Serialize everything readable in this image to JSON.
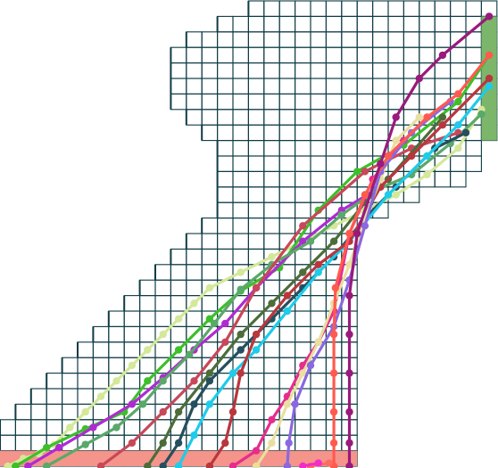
{
  "game": {
    "grid_color": "#0d3b44",
    "start_zone_color": "#f4948a",
    "goal_zone_color": "#7cb66b",
    "background": "#ffffff"
  },
  "paths": [
    {
      "color": "#d4e89a",
      "points": [
        [
          0.5,
          30
        ],
        [
          1.5,
          29.5
        ],
        [
          2.5,
          29.2
        ],
        [
          3.5,
          28.6
        ],
        [
          4.5,
          27.5
        ],
        [
          5.5,
          26.5
        ],
        [
          6.5,
          25.5
        ],
        [
          7.5,
          24.5
        ],
        [
          8.5,
          23.5
        ],
        [
          9.5,
          22.5
        ],
        [
          10.5,
          21.5
        ],
        [
          11.5,
          20.5
        ],
        [
          12.5,
          19.5
        ],
        [
          13.5,
          18.5
        ],
        [
          15.5,
          17.5
        ],
        [
          17.5,
          16.5
        ],
        [
          19.5,
          15.5
        ],
        [
          21.5,
          14.5
        ],
        [
          23.5,
          13.5
        ],
        [
          25.5,
          12.5
        ],
        [
          27.5,
          11.2
        ],
        [
          29.5,
          9.5
        ],
        [
          31.0,
          7.0
        ]
      ]
    },
    {
      "color": "#3cbf2a",
      "points": [
        [
          1.0,
          30
        ],
        [
          3.0,
          28.8
        ],
        [
          5.5,
          27.6
        ],
        [
          8.0,
          26.5
        ],
        [
          9.5,
          24.5
        ],
        [
          11.5,
          22.5
        ],
        [
          13.5,
          20.5
        ],
        [
          15.5,
          18.7
        ],
        [
          18.0,
          17.2
        ],
        [
          20.5,
          13.5
        ],
        [
          23.0,
          11.0
        ],
        [
          26.0,
          9.3
        ],
        [
          29.5,
          6.5
        ],
        [
          31.5,
          3.5
        ]
      ]
    },
    {
      "color": "#ae2bd2",
      "points": [
        [
          1.8,
          30
        ],
        [
          3.8,
          28.8
        ],
        [
          6.0,
          27.5
        ],
        [
          8.5,
          26.0
        ],
        [
          10.5,
          24.3
        ],
        [
          12.5,
          22.5
        ],
        [
          14.5,
          20.8
        ],
        [
          16.5,
          18.5
        ],
        [
          19.5,
          15.5
        ],
        [
          22.0,
          13.5
        ],
        [
          24.5,
          12.0
        ]
      ]
    },
    {
      "color": "#5aa86a",
      "points": [
        [
          3.0,
          30
        ],
        [
          5.5,
          28.6
        ],
        [
          7.5,
          27.5
        ],
        [
          9.2,
          26.0
        ],
        [
          10.5,
          24.5
        ],
        [
          12.2,
          22.8
        ],
        [
          13.8,
          20.8
        ],
        [
          15.5,
          18.6
        ],
        [
          17.5,
          17.0
        ],
        [
          20.0,
          15.5
        ],
        [
          22.0,
          13.8
        ],
        [
          24.2,
          12.2
        ],
        [
          26.5,
          11.2
        ],
        [
          29.0,
          9.2
        ],
        [
          31.0,
          7.3
        ]
      ]
    },
    {
      "color": "#c8475a",
      "points": [
        [
          6.5,
          30
        ],
        [
          8.5,
          28.5
        ],
        [
          10.5,
          26.5
        ],
        [
          12.5,
          24.5
        ],
        [
          14.5,
          22.0
        ],
        [
          16.5,
          18.5
        ],
        [
          19.5,
          14.5
        ],
        [
          23.5,
          11.0
        ],
        [
          26.5,
          9.5
        ],
        [
          29.5,
          8.5
        ]
      ]
    },
    {
      "color": "#4c6d3a",
      "points": [
        [
          9.5,
          30
        ],
        [
          10.5,
          28.5
        ],
        [
          11.5,
          26.5
        ],
        [
          13.5,
          24.0
        ],
        [
          15.5,
          21.5
        ],
        [
          17.5,
          19.5
        ],
        [
          19.5,
          17.5
        ],
        [
          21.5,
          15.5
        ],
        [
          23.5,
          13.0
        ],
        [
          25.0,
          11.5
        ],
        [
          28.5,
          7.5
        ]
      ]
    },
    {
      "color": "#254f5f",
      "points": [
        [
          10.5,
          30
        ],
        [
          11.5,
          28.5
        ],
        [
          12.5,
          26.0
        ],
        [
          13.5,
          24.5
        ],
        [
          15.5,
          22.5
        ],
        [
          17.5,
          20.5
        ],
        [
          19.5,
          18.5
        ],
        [
          21.5,
          16.5
        ],
        [
          23.5,
          14.0
        ],
        [
          25.5,
          12.0
        ],
        [
          28.0,
          9.5
        ],
        [
          30.0,
          8.5
        ]
      ]
    },
    {
      "color": "#1ecbea",
      "points": [
        [
          11.5,
          30
        ],
        [
          12.5,
          28.0
        ],
        [
          13.5,
          26.0
        ],
        [
          15.0,
          24.0
        ],
        [
          16.5,
          22.5
        ],
        [
          18.5,
          20.0
        ],
        [
          20.5,
          17.5
        ],
        [
          22.5,
          15.5
        ],
        [
          25.0,
          12.5
        ],
        [
          27.5,
          10.0
        ],
        [
          29.5,
          8.0
        ],
        [
          31.5,
          5.5
        ]
      ]
    },
    {
      "color": "#b8373d",
      "points": [
        [
          13.5,
          30
        ],
        [
          14.5,
          28.5
        ],
        [
          15.0,
          26.5
        ],
        [
          15.5,
          24.0
        ],
        [
          16.5,
          21.5
        ],
        [
          18.5,
          19.0
        ],
        [
          20.5,
          17.0
        ],
        [
          22.5,
          15.5
        ],
        [
          24.5,
          12.0
        ],
        [
          26.5,
          10.0
        ],
        [
          28.5,
          8.0
        ],
        [
          31.5,
          5.0
        ]
      ]
    },
    {
      "color": "#e62c8e",
      "points": [
        [
          15.0,
          30
        ],
        [
          16.5,
          29.0
        ],
        [
          17.5,
          27.0
        ],
        [
          18.5,
          25.5
        ],
        [
          19.5,
          23.5
        ],
        [
          20.5,
          22.0
        ],
        [
          21.5,
          20.0
        ],
        [
          22.5,
          15.0
        ],
        [
          24.0,
          11.5
        ],
        [
          26.0,
          9.0
        ]
      ]
    },
    {
      "color": "#e8dfa0",
      "points": [
        [
          16.5,
          30
        ],
        [
          17.5,
          28.5
        ],
        [
          18.5,
          26.0
        ],
        [
          19.5,
          24.0
        ],
        [
          20.5,
          22.0
        ],
        [
          21.5,
          19.5
        ],
        [
          22.5,
          17.0
        ],
        [
          23.5,
          14.0
        ],
        [
          24.5,
          11.5
        ],
        [
          25.5,
          9.0
        ],
        [
          27.0,
          7.5
        ]
      ]
    },
    {
      "color": "#8a68e0",
      "points": [
        [
          18.5,
          30
        ],
        [
          18.6,
          28.5
        ],
        [
          19.0,
          26.0
        ],
        [
          20.0,
          23.5
        ],
        [
          21.5,
          21.0
        ],
        [
          22.5,
          18.0
        ],
        [
          23.5,
          14.5
        ],
        [
          24.5,
          11.0
        ],
        [
          26.5,
          8.5
        ],
        [
          29.0,
          6.5
        ]
      ]
    },
    {
      "color": "#ff5a4e",
      "points": [
        [
          21.5,
          30
        ],
        [
          21.5,
          28.5
        ],
        [
          21.5,
          26.5
        ],
        [
          21.5,
          24.0
        ],
        [
          21.5,
          21.5
        ],
        [
          21.6,
          18.5
        ],
        [
          22.5,
          15.0
        ],
        [
          23.5,
          12.5
        ],
        [
          25.0,
          10.0
        ],
        [
          27.5,
          7.5
        ],
        [
          29.5,
          6.0
        ],
        [
          31.5,
          3.5
        ]
      ]
    },
    {
      "color": "#991a7c",
      "points": [
        [
          22.5,
          30
        ],
        [
          22.5,
          28.5
        ],
        [
          22.5,
          26.5
        ],
        [
          22.5,
          24.0
        ],
        [
          22.5,
          21.5
        ],
        [
          22.5,
          19.0
        ],
        [
          23.0,
          15.0
        ],
        [
          24.5,
          10.5
        ],
        [
          25.5,
          7.5
        ],
        [
          27.0,
          5.0
        ],
        [
          28.5,
          3.5
        ],
        [
          31.5,
          1.0
        ]
      ]
    },
    {
      "color": "#ff6b5c",
      "points": [
        [
          20.0,
          30
        ],
        [
          21.2,
          29.8
        ]
      ]
    },
    {
      "color": "#f22cc8",
      "points": [
        [
          19.5,
          30
        ],
        [
          20.5,
          29.8
        ]
      ]
    }
  ]
}
